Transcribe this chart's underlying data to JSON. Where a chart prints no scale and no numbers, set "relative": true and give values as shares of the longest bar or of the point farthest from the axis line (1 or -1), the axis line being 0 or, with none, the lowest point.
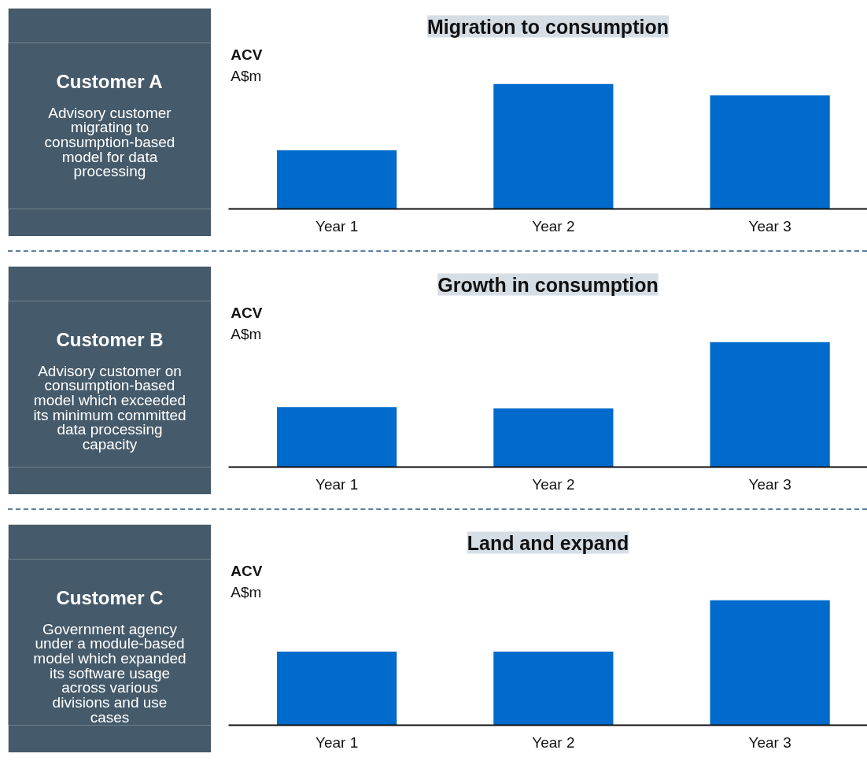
{
  "chart_data": [
    {
      "type": "other",
      "title": "Customer A",
      "annotations": [
        "Advisory customer migrating to consumption-based model for data processing"
      ]
    },
    {
      "type": "bar",
      "title": "Migration to consumption",
      "ylabel": "ACV",
      "annotations": [
        "A$m"
      ],
      "categories": [
        "Year 1",
        "Year 2",
        "Year 3"
      ],
      "values": [
        0.47,
        1,
        0.91
      ],
      "color": "#006bcc",
      "relative": true
    },
    {
      "type": "other",
      "title": "Customer B",
      "annotations": [
        "Advisory customer on consumption-based model which exceeded its minimum committed data processing capacity"
      ]
    },
    {
      "type": "bar",
      "title": "Growth in consumption",
      "ylabel": "ACV",
      "annotations": [
        "A$m"
      ],
      "categories": [
        "Year 1",
        "Year 2",
        "Year 3"
      ],
      "values": [
        0.48,
        0.47,
        1
      ],
      "color": "#006bcc",
      "relative": true
    },
    {
      "type": "other",
      "title": "Customer C",
      "annotations": [
        "Government agency under a module-based model which expanded its software usage across various divisions and use cases"
      ]
    },
    {
      "type": "bar",
      "title": "Land and expand",
      "ylabel": "ACV",
      "annotations": [
        "A$m"
      ],
      "categories": [
        "Year 1",
        "Year 2",
        "Year 3"
      ],
      "values": [
        0.59,
        0.59,
        1
      ],
      "color": "#006bcc",
      "relative": true
    }
  ]
}
